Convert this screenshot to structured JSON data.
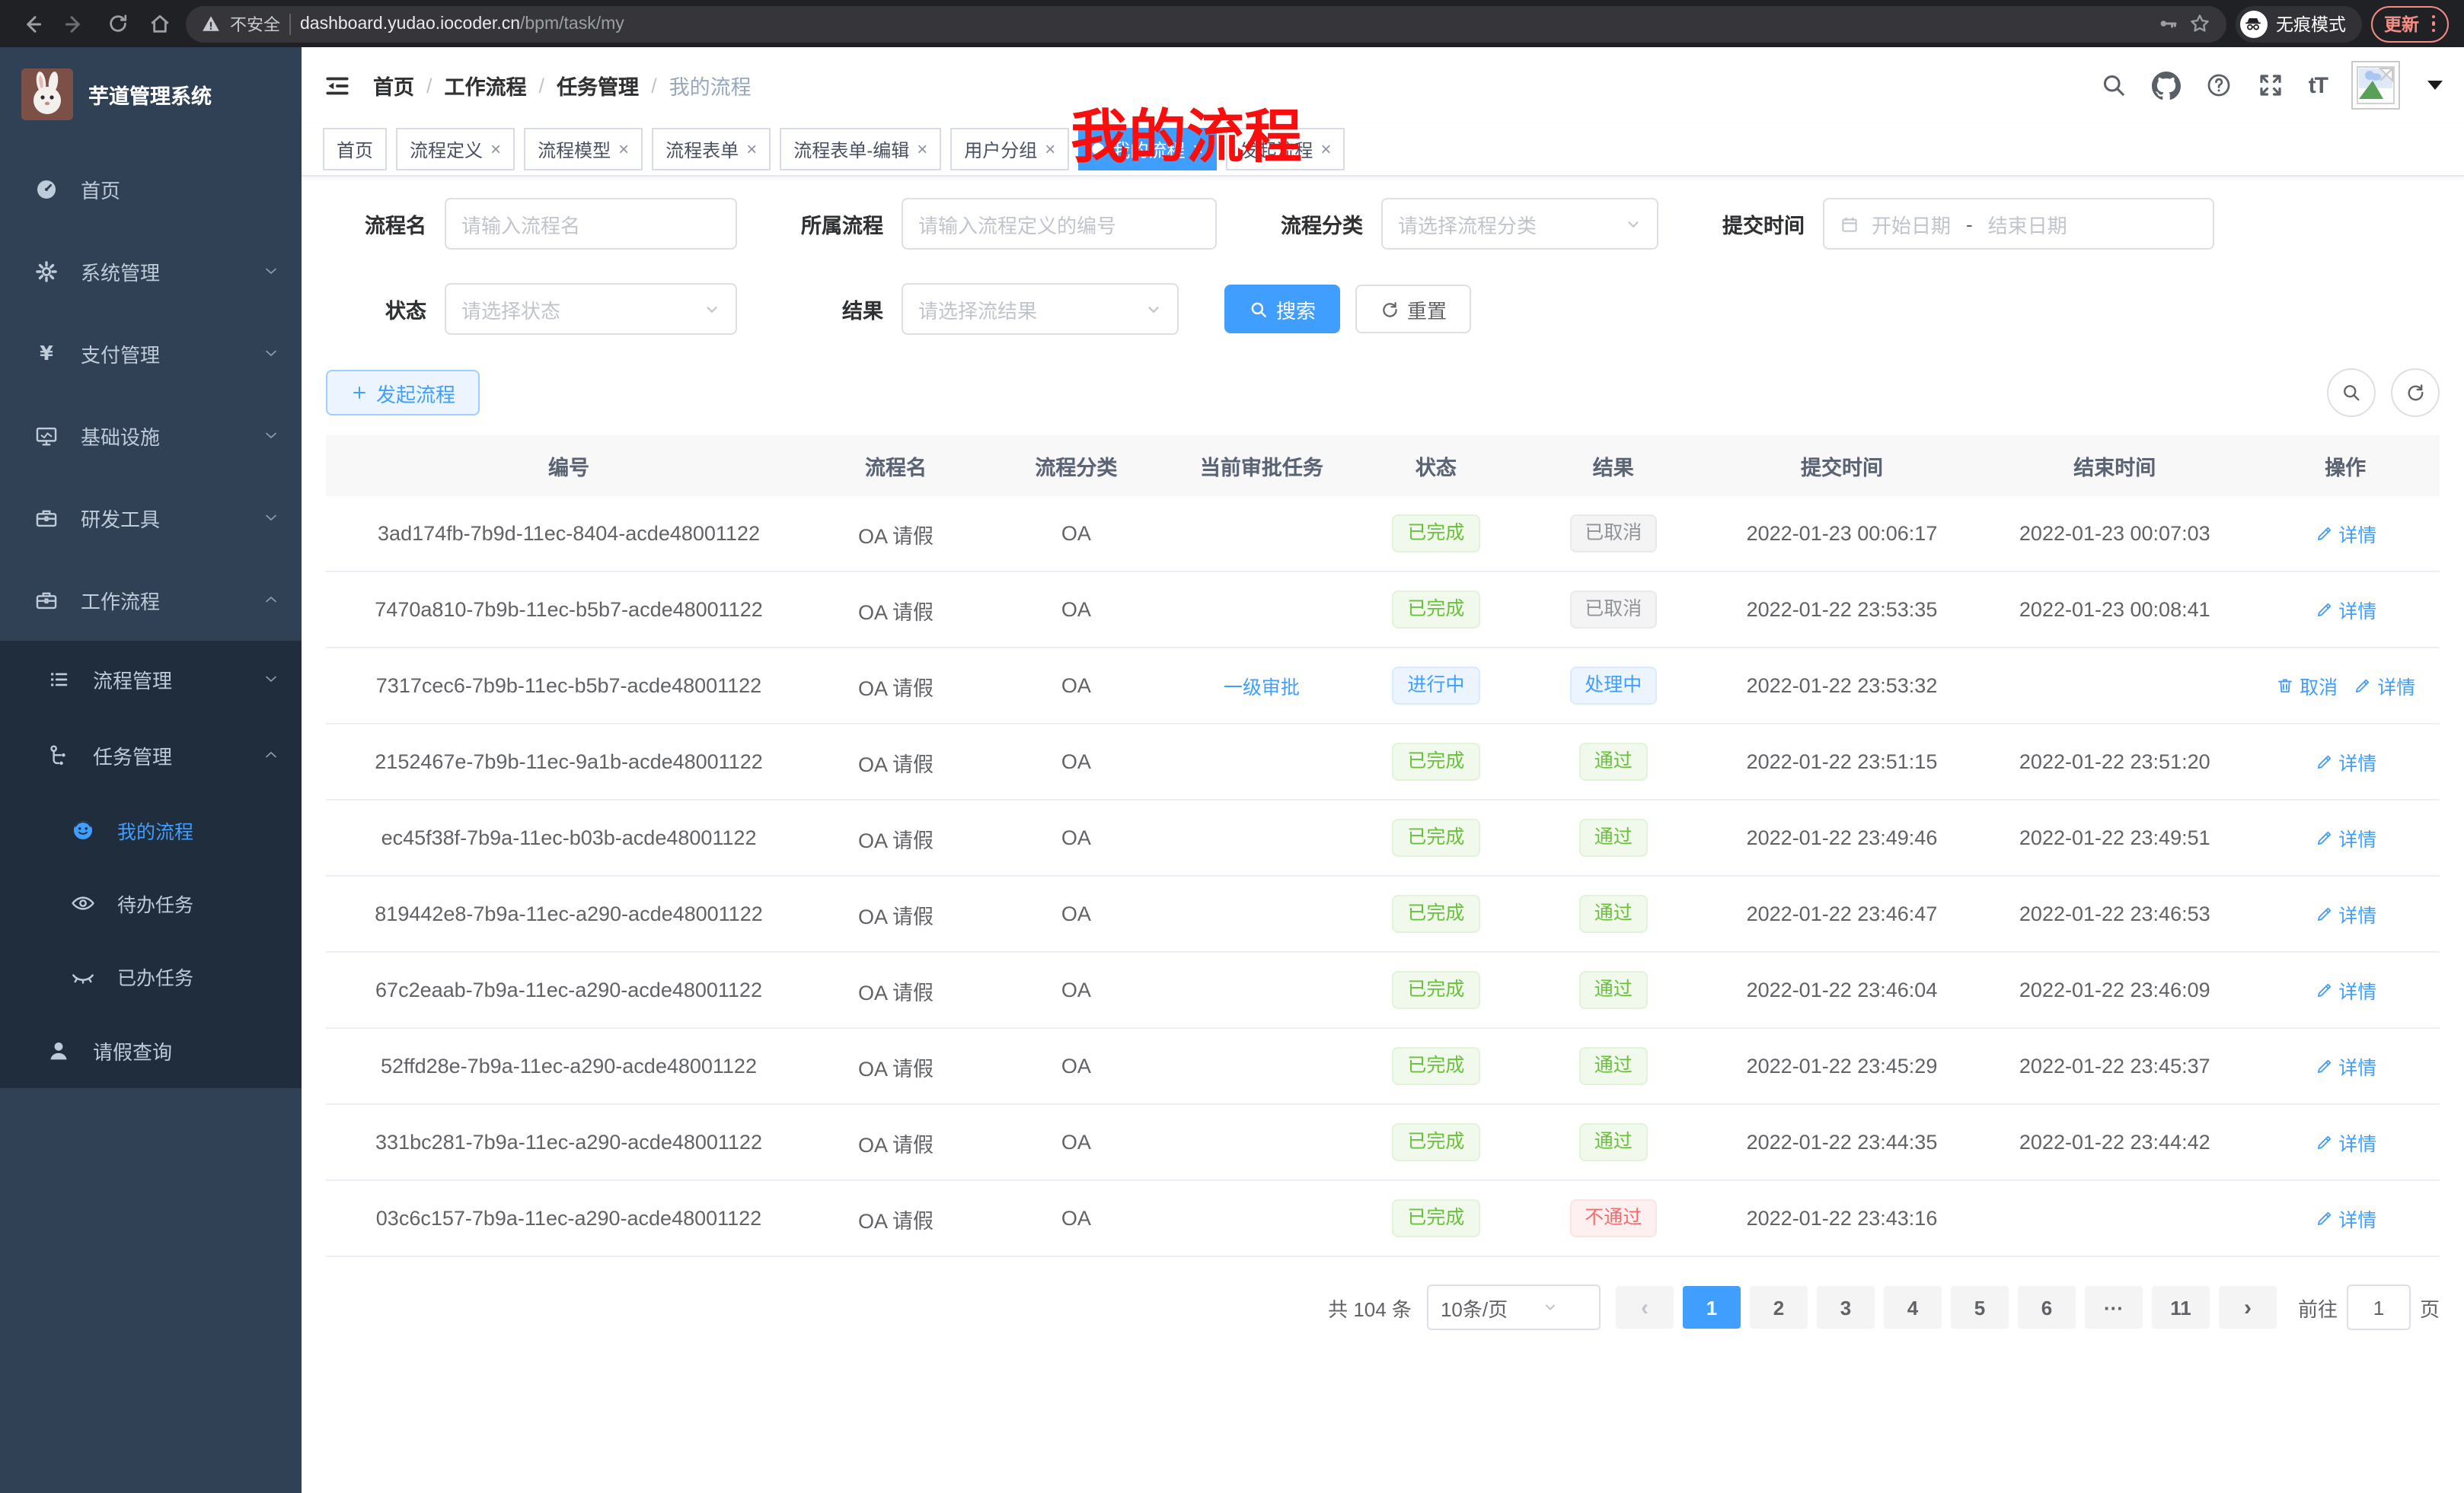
{
  "browser": {
    "security_label": "不安全",
    "url_host": "dashboard.yudao.iocoder.cn",
    "url_path": "/bpm/task/my",
    "incognito_label": "无痕模式",
    "update_label": "更新"
  },
  "glyphs": {
    "close": "×",
    "active_dot": "●",
    "breadcrumb_sep": "/",
    "prev": "‹",
    "next": "›",
    "date_sep": "-",
    "font_size": "tT"
  },
  "sidebar": {
    "app_title": "芋道管理系统",
    "items": [
      {
        "label": "首页",
        "icon": "dashboard"
      },
      {
        "label": "系统管理",
        "icon": "gear",
        "chevron": "down"
      },
      {
        "label": "支付管理",
        "icon": "yen",
        "chevron": "down"
      },
      {
        "label": "基础设施",
        "icon": "monitor",
        "chevron": "down"
      },
      {
        "label": "研发工具",
        "icon": "toolbox",
        "chevron": "down"
      },
      {
        "label": "工作流程",
        "icon": "briefcase",
        "chevron": "up"
      }
    ],
    "submenu": [
      {
        "label": "流程管理",
        "icon": "list",
        "chevron": "down",
        "level": 2
      },
      {
        "label": "任务管理",
        "icon": "tree",
        "chevron": "up",
        "level": 2
      },
      {
        "label": "我的流程",
        "icon": "robot",
        "level": 3,
        "active": true
      },
      {
        "label": "待办任务",
        "icon": "eye-open",
        "level": 3
      },
      {
        "label": "已办任务",
        "icon": "eye-closed",
        "level": 3
      },
      {
        "label": "请假查询",
        "icon": "user",
        "level": 2
      }
    ]
  },
  "header": {
    "breadcrumb": [
      "首页",
      "工作流程",
      "任务管理",
      "我的流程"
    ],
    "overlay_title": "我的流程"
  },
  "tabs": [
    {
      "label": "首页",
      "closable": false,
      "active": false
    },
    {
      "label": "流程定义",
      "closable": true,
      "active": false
    },
    {
      "label": "流程模型",
      "closable": true,
      "active": false
    },
    {
      "label": "流程表单",
      "closable": true,
      "active": false
    },
    {
      "label": "流程表单-编辑",
      "closable": true,
      "active": false
    },
    {
      "label": "用户分组",
      "closable": true,
      "active": false
    },
    {
      "label": "我的流程",
      "closable": true,
      "active": true
    },
    {
      "label": "发起流程",
      "closable": true,
      "active": false
    }
  ],
  "filters": {
    "name_label": "流程名",
    "name_placeholder": "请输入流程名",
    "definition_label": "所属流程",
    "definition_placeholder": "请输入流程定义的编号",
    "category_label": "流程分类",
    "category_placeholder": "请选择流程分类",
    "submit_time_label": "提交时间",
    "start_date_placeholder": "开始日期",
    "end_date_placeholder": "结束日期",
    "status_label": "状态",
    "status_placeholder": "请选择状态",
    "result_label": "结果",
    "result_placeholder": "请选择流结果",
    "search_label": "搜索",
    "reset_label": "重置"
  },
  "toolbar": {
    "create_label": "发起流程"
  },
  "table": {
    "columns": [
      "编号",
      "流程名",
      "流程分类",
      "当前审批任务",
      "状态",
      "结果",
      "提交时间",
      "结束时间",
      "操作"
    ],
    "rows": [
      {
        "id": "3ad174fb-7b9d-11ec-8404-acde48001122",
        "name": "OA 请假",
        "category": "OA",
        "current_task": "",
        "status": "已完成",
        "status_type": "success",
        "result": "已取消",
        "result_type": "info",
        "submit_time": "2022-01-23 00:06:17",
        "end_time": "2022-01-23 00:07:03",
        "actions": [
          {
            "label": "详情",
            "icon": "edit"
          }
        ]
      },
      {
        "id": "7470a810-7b9b-11ec-b5b7-acde48001122",
        "name": "OA 请假",
        "category": "OA",
        "current_task": "",
        "status": "已完成",
        "status_type": "success",
        "result": "已取消",
        "result_type": "info",
        "submit_time": "2022-01-22 23:53:35",
        "end_time": "2022-01-23 00:08:41",
        "actions": [
          {
            "label": "详情",
            "icon": "edit"
          }
        ]
      },
      {
        "id": "7317cec6-7b9b-11ec-b5b7-acde48001122",
        "name": "OA 请假",
        "category": "OA",
        "current_task": "一级审批",
        "status": "进行中",
        "status_type": "primary",
        "result": "处理中",
        "result_type": "primary",
        "submit_time": "2022-01-22 23:53:32",
        "end_time": "",
        "actions": [
          {
            "label": "取消",
            "icon": "trash"
          },
          {
            "label": "详情",
            "icon": "edit"
          }
        ]
      },
      {
        "id": "2152467e-7b9b-11ec-9a1b-acde48001122",
        "name": "OA 请假",
        "category": "OA",
        "current_task": "",
        "status": "已完成",
        "status_type": "success",
        "result": "通过",
        "result_type": "success",
        "submit_time": "2022-01-22 23:51:15",
        "end_time": "2022-01-22 23:51:20",
        "actions": [
          {
            "label": "详情",
            "icon": "edit"
          }
        ]
      },
      {
        "id": "ec45f38f-7b9a-11ec-b03b-acde48001122",
        "name": "OA 请假",
        "category": "OA",
        "current_task": "",
        "status": "已完成",
        "status_type": "success",
        "result": "通过",
        "result_type": "success",
        "submit_time": "2022-01-22 23:49:46",
        "end_time": "2022-01-22 23:49:51",
        "actions": [
          {
            "label": "详情",
            "icon": "edit"
          }
        ]
      },
      {
        "id": "819442e8-7b9a-11ec-a290-acde48001122",
        "name": "OA 请假",
        "category": "OA",
        "current_task": "",
        "status": "已完成",
        "status_type": "success",
        "result": "通过",
        "result_type": "success",
        "submit_time": "2022-01-22 23:46:47",
        "end_time": "2022-01-22 23:46:53",
        "actions": [
          {
            "label": "详情",
            "icon": "edit"
          }
        ]
      },
      {
        "id": "67c2eaab-7b9a-11ec-a290-acde48001122",
        "name": "OA 请假",
        "category": "OA",
        "current_task": "",
        "status": "已完成",
        "status_type": "success",
        "result": "通过",
        "result_type": "success",
        "submit_time": "2022-01-22 23:46:04",
        "end_time": "2022-01-22 23:46:09",
        "actions": [
          {
            "label": "详情",
            "icon": "edit"
          }
        ]
      },
      {
        "id": "52ffd28e-7b9a-11ec-a290-acde48001122",
        "name": "OA 请假",
        "category": "OA",
        "current_task": "",
        "status": "已完成",
        "status_type": "success",
        "result": "通过",
        "result_type": "success",
        "submit_time": "2022-01-22 23:45:29",
        "end_time": "2022-01-22 23:45:37",
        "actions": [
          {
            "label": "详情",
            "icon": "edit"
          }
        ]
      },
      {
        "id": "331bc281-7b9a-11ec-a290-acde48001122",
        "name": "OA 请假",
        "category": "OA",
        "current_task": "",
        "status": "已完成",
        "status_type": "success",
        "result": "通过",
        "result_type": "success",
        "submit_time": "2022-01-22 23:44:35",
        "end_time": "2022-01-22 23:44:42",
        "actions": [
          {
            "label": "详情",
            "icon": "edit"
          }
        ]
      },
      {
        "id": "03c6c157-7b9a-11ec-a290-acde48001122",
        "name": "OA 请假",
        "category": "OA",
        "current_task": "",
        "status": "已完成",
        "status_type": "success",
        "result": "不通过",
        "result_type": "danger",
        "submit_time": "2022-01-22 23:43:16",
        "end_time": "",
        "actions": [
          {
            "label": "详情",
            "icon": "edit"
          }
        ]
      }
    ]
  },
  "pagination": {
    "total": "共 104 条",
    "page_size": "10条/页",
    "pages": [
      {
        "label": "1",
        "active": true
      },
      {
        "label": "2"
      },
      {
        "label": "3"
      },
      {
        "label": "4"
      },
      {
        "label": "5"
      },
      {
        "label": "6"
      },
      {
        "label": "···",
        "ellipsis": true
      },
      {
        "label": "11"
      }
    ],
    "goto_label": "前往",
    "goto_value": "1",
    "page_unit": "页"
  }
}
